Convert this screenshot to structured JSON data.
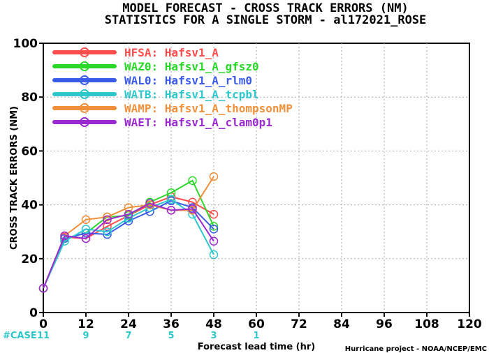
{
  "chart_data": {
    "type": "line",
    "title": "MODEL FORECAST - CROSS TRACK ERRORS (NM)",
    "subtitle": "STATISTICS FOR A SINGLE STORM - al172021_ROSE",
    "xlabel": "Forecast lead time (hr)",
    "ylabel": "CROSS TRACK ERRORS (NM)",
    "xlim": [
      0,
      120
    ],
    "ylim": [
      0,
      100
    ],
    "x_ticks": [
      "0",
      "12",
      "24",
      "36",
      "48",
      "60",
      "72",
      "84",
      "96",
      "108",
      "120"
    ],
    "y_ticks": [
      "0",
      "20",
      "40",
      "60",
      "80",
      "100"
    ],
    "legend_position": "top-left",
    "series": [
      {
        "name": "HFSA: Hafsv1_A",
        "color": "#ff4c4c",
        "x": [
          0,
          6,
          12,
          18,
          24,
          30,
          36,
          42,
          48
        ],
        "values": [
          9,
          28,
          27.5,
          32,
          36,
          40,
          43,
          41,
          36.5
        ]
      },
      {
        "name": "WAZ0: Hafsv1_A_gfsz0",
        "color": "#2ad82a",
        "x": [
          0,
          6,
          12,
          18,
          24,
          30,
          36,
          42,
          48
        ],
        "values": [
          9,
          27.5,
          29.5,
          35.5,
          36,
          41,
          44.5,
          49,
          32
        ]
      },
      {
        "name": "WAL0: Hafsv1_A_rlm0",
        "color": "#3b5bea",
        "x": [
          0,
          6,
          12,
          18,
          24,
          30,
          36,
          42,
          48
        ],
        "values": [
          9,
          27.5,
          29.5,
          29,
          34,
          37.5,
          41.5,
          39,
          31
        ]
      },
      {
        "name": "WATB: Hafsv1_A_tcpbl",
        "color": "#2ec8cc",
        "x": [
          0,
          6,
          12,
          18,
          24,
          30,
          36,
          42,
          48
        ],
        "values": [
          9,
          26.5,
          31,
          30,
          35,
          39,
          42,
          36.5,
          21.5
        ]
      },
      {
        "name": "WAMP: Hafsv1_A_thompsonMP",
        "color": "#f0903a",
        "x": [
          0,
          6,
          12,
          18,
          24,
          30,
          36,
          42,
          48
        ],
        "values": [
          9,
          28.5,
          34.5,
          35.5,
          39,
          40,
          38,
          38,
          50.5
        ]
      },
      {
        "name": "WAET: Hafsv1_A_clam0p1",
        "color": "#9b2ad0",
        "x": [
          0,
          6,
          12,
          18,
          24,
          30,
          36,
          42,
          48
        ],
        "values": [
          9,
          28.5,
          27.5,
          34.5,
          36.5,
          40.5,
          38,
          38.5,
          26.5
        ]
      }
    ],
    "case_counts": {
      "label": "#CASE",
      "color": "#2ec8cc",
      "x": [
        0,
        12,
        24,
        36,
        48,
        60
      ],
      "values": [
        "11",
        "9",
        "7",
        "5",
        "3",
        "1"
      ]
    },
    "credit": "Hurricane project - NOAA/NCEP/EMC"
  }
}
